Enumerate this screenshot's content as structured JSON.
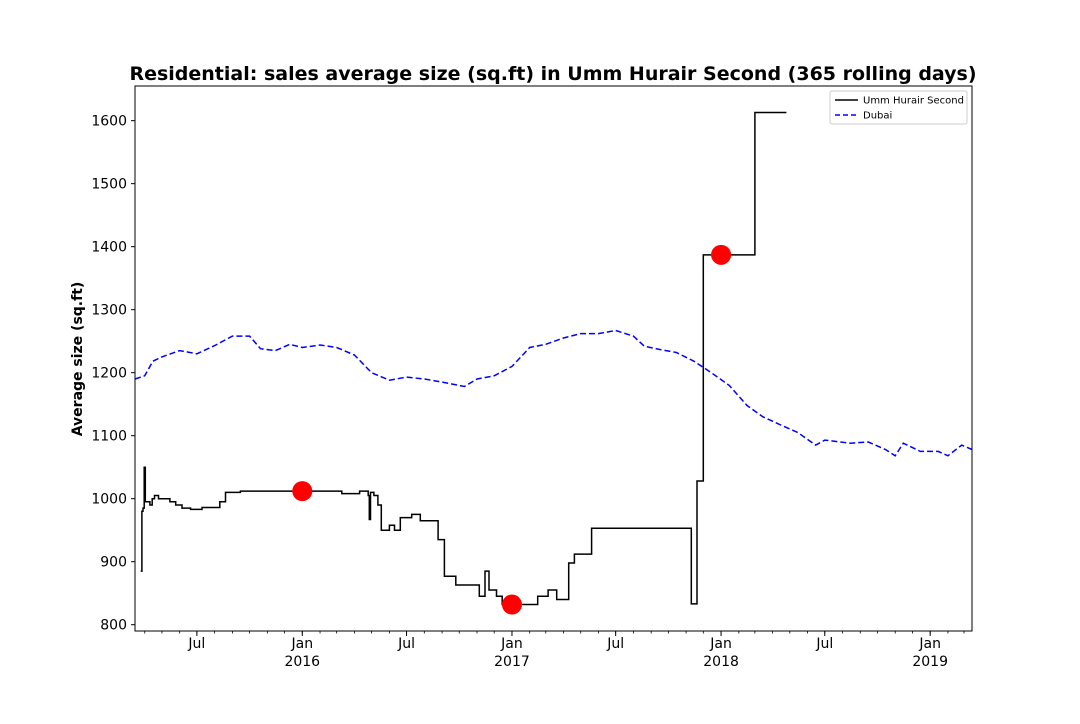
{
  "chart_data": {
    "type": "line",
    "title": "Residential: sales average size (sq.ft) in Umm Hurair Second (365 rolling days)",
    "xlabel": "",
    "ylabel": "Average size (sq.ft)",
    "xlim": [
      "2015-03-15",
      "2019-03-15"
    ],
    "ylim": [
      790,
      1655
    ],
    "yticks": [
      800,
      900,
      1000,
      1100,
      1200,
      1300,
      1400,
      1500,
      1600
    ],
    "xticks": [
      {
        "date": "2015-07-01",
        "label": "Jul",
        "sublabel": ""
      },
      {
        "date": "2016-01-01",
        "label": "Jan",
        "sublabel": "2016"
      },
      {
        "date": "2016-07-01",
        "label": "Jul",
        "sublabel": ""
      },
      {
        "date": "2017-01-01",
        "label": "Jan",
        "sublabel": "2017"
      },
      {
        "date": "2017-07-01",
        "label": "Jul",
        "sublabel": ""
      },
      {
        "date": "2018-01-01",
        "label": "Jan",
        "sublabel": "2018"
      },
      {
        "date": "2018-07-01",
        "label": "Jul",
        "sublabel": ""
      },
      {
        "date": "2019-01-01",
        "label": "Jan",
        "sublabel": "2019"
      }
    ],
    "grid": false,
    "legend_position": "top-right",
    "series": [
      {
        "name": "Umm Hurair Second",
        "style": "solid",
        "color": "#000000",
        "step": true,
        "points": [
          [
            "2015-03-25",
            885
          ],
          [
            "2015-03-27",
            980
          ],
          [
            "2015-03-29",
            985
          ],
          [
            "2015-03-31",
            1050
          ],
          [
            "2015-04-02",
            995
          ],
          [
            "2015-04-10",
            990
          ],
          [
            "2015-04-14",
            1000
          ],
          [
            "2015-04-18",
            1005
          ],
          [
            "2015-04-25",
            1000
          ],
          [
            "2015-05-05",
            1000
          ],
          [
            "2015-05-15",
            995
          ],
          [
            "2015-05-25",
            990
          ],
          [
            "2015-06-05",
            985
          ],
          [
            "2015-06-20",
            983
          ],
          [
            "2015-07-10",
            986
          ],
          [
            "2015-08-10",
            995
          ],
          [
            "2015-08-20",
            1010
          ],
          [
            "2015-09-15",
            1012
          ],
          [
            "2015-11-01",
            1012
          ],
          [
            "2016-01-01",
            1012
          ],
          [
            "2016-02-15",
            1012
          ],
          [
            "2016-03-10",
            1008
          ],
          [
            "2016-04-10",
            1012
          ],
          [
            "2016-04-25",
            1005
          ],
          [
            "2016-04-27",
            967
          ],
          [
            "2016-04-29",
            1010
          ],
          [
            "2016-05-05",
            1005
          ],
          [
            "2016-05-12",
            990
          ],
          [
            "2016-05-18",
            950
          ],
          [
            "2016-06-01",
            958
          ],
          [
            "2016-06-10",
            950
          ],
          [
            "2016-06-20",
            970
          ],
          [
            "2016-07-10",
            975
          ],
          [
            "2016-07-25",
            965
          ],
          [
            "2016-08-25",
            935
          ],
          [
            "2016-09-05",
            877
          ],
          [
            "2016-09-25",
            863
          ],
          [
            "2016-10-25",
            863
          ],
          [
            "2016-11-05",
            845
          ],
          [
            "2016-11-15",
            885
          ],
          [
            "2016-11-22",
            855
          ],
          [
            "2016-12-05",
            845
          ],
          [
            "2016-12-15",
            832
          ],
          [
            "2017-02-15",
            845
          ],
          [
            "2017-03-05",
            855
          ],
          [
            "2017-03-20",
            840
          ],
          [
            "2017-04-10",
            898
          ],
          [
            "2017-04-20",
            912
          ],
          [
            "2017-05-20",
            953
          ],
          [
            "2017-11-10",
            833
          ],
          [
            "2017-11-20",
            1028
          ],
          [
            "2017-12-01",
            1387
          ],
          [
            "2018-03-01",
            1613
          ],
          [
            "2018-04-25",
            1613
          ]
        ]
      },
      {
        "name": "Dubai",
        "style": "dashed",
        "color": "#0000ff",
        "step": false,
        "points": [
          [
            "2015-03-15",
            1190
          ],
          [
            "2015-04-01",
            1195
          ],
          [
            "2015-04-15",
            1218
          ],
          [
            "2015-05-01",
            1225
          ],
          [
            "2015-06-01",
            1235
          ],
          [
            "2015-07-01",
            1230
          ],
          [
            "2015-08-01",
            1243
          ],
          [
            "2015-09-01",
            1258
          ],
          [
            "2015-10-01",
            1258
          ],
          [
            "2015-10-20",
            1238
          ],
          [
            "2015-11-15",
            1235
          ],
          [
            "2015-12-10",
            1245
          ],
          [
            "2016-01-01",
            1240
          ],
          [
            "2016-02-01",
            1244
          ],
          [
            "2016-03-01",
            1240
          ],
          [
            "2016-04-01",
            1228
          ],
          [
            "2016-05-01",
            1200
          ],
          [
            "2016-06-01",
            1188
          ],
          [
            "2016-07-01",
            1193
          ],
          [
            "2016-08-01",
            1190
          ],
          [
            "2016-09-01",
            1185
          ],
          [
            "2016-10-10",
            1178
          ],
          [
            "2016-11-01",
            1190
          ],
          [
            "2016-12-01",
            1195
          ],
          [
            "2017-01-01",
            1210
          ],
          [
            "2017-02-01",
            1240
          ],
          [
            "2017-03-01",
            1245
          ],
          [
            "2017-04-01",
            1255
          ],
          [
            "2017-05-01",
            1262
          ],
          [
            "2017-06-01",
            1262
          ],
          [
            "2017-07-01",
            1267
          ],
          [
            "2017-08-01",
            1258
          ],
          [
            "2017-08-20",
            1242
          ],
          [
            "2017-09-15",
            1237
          ],
          [
            "2017-10-15",
            1232
          ],
          [
            "2017-11-15",
            1218
          ],
          [
            "2017-12-15",
            1200
          ],
          [
            "2018-01-15",
            1180
          ],
          [
            "2018-02-15",
            1148
          ],
          [
            "2018-03-15",
            1130
          ],
          [
            "2018-04-15",
            1117
          ],
          [
            "2018-05-15",
            1105
          ],
          [
            "2018-06-15",
            1085
          ],
          [
            "2018-07-01",
            1093
          ],
          [
            "2018-08-15",
            1088
          ],
          [
            "2018-09-15",
            1090
          ],
          [
            "2018-10-15",
            1078
          ],
          [
            "2018-11-01",
            1068
          ],
          [
            "2018-11-15",
            1088
          ],
          [
            "2018-12-15",
            1075
          ],
          [
            "2019-01-15",
            1075
          ],
          [
            "2019-02-01",
            1068
          ],
          [
            "2019-02-25",
            1085
          ],
          [
            "2019-03-15",
            1078
          ]
        ]
      }
    ],
    "markers": [
      {
        "date": "2016-01-01",
        "value": 1012,
        "color": "#ff0000"
      },
      {
        "date": "2017-01-01",
        "value": 832,
        "color": "#ff0000"
      },
      {
        "date": "2018-01-01",
        "value": 1387,
        "color": "#ff0000"
      }
    ]
  }
}
